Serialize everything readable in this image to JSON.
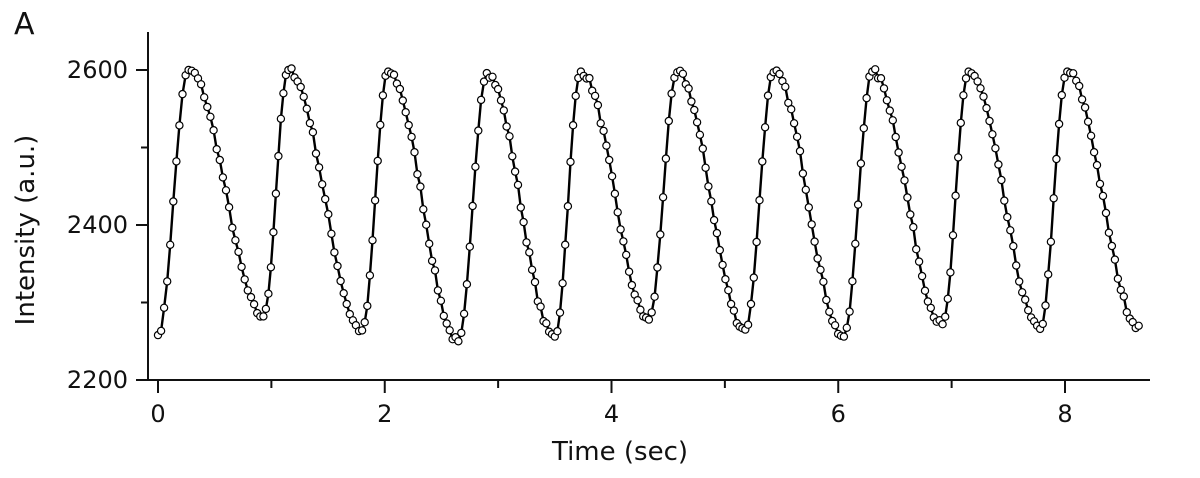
{
  "panel_label": "A",
  "chart_data": {
    "type": "line",
    "xlabel": "Time (sec)",
    "ylabel": "Intensity (a.u.)",
    "xlim": [
      0,
      8.8
    ],
    "ylim": [
      2200,
      2650
    ],
    "x_ticks": [
      0,
      2,
      4,
      6,
      8
    ],
    "x_minor_ticks": [
      1,
      3,
      5,
      7
    ],
    "y_ticks": [
      2200,
      2400,
      2600
    ],
    "y_minor_ticks": [
      2300,
      2500
    ],
    "grid": false,
    "legend": "none",
    "marker": "open-circle",
    "peaks": [
      {
        "x": 0.27,
        "y": 2600
      },
      {
        "x": 1.15,
        "y": 2600
      },
      {
        "x": 2.03,
        "y": 2598
      },
      {
        "x": 2.9,
        "y": 2596
      },
      {
        "x": 3.73,
        "y": 2598
      },
      {
        "x": 4.58,
        "y": 2597
      },
      {
        "x": 5.43,
        "y": 2597
      },
      {
        "x": 6.3,
        "y": 2598
      },
      {
        "x": 7.15,
        "y": 2598
      },
      {
        "x": 8.02,
        "y": 2598
      }
    ],
    "troughs": [
      {
        "x": 0.0,
        "y": 2258
      },
      {
        "x": 0.93,
        "y": 2282
      },
      {
        "x": 1.8,
        "y": 2264
      },
      {
        "x": 2.65,
        "y": 2250
      },
      {
        "x": 3.5,
        "y": 2256
      },
      {
        "x": 4.33,
        "y": 2278
      },
      {
        "x": 5.18,
        "y": 2265
      },
      {
        "x": 6.05,
        "y": 2256
      },
      {
        "x": 6.92,
        "y": 2272
      },
      {
        "x": 7.78,
        "y": 2266
      },
      {
        "x": 8.65,
        "y": 2270
      }
    ],
    "points_per_rise": 10,
    "points_per_fall": 24
  }
}
